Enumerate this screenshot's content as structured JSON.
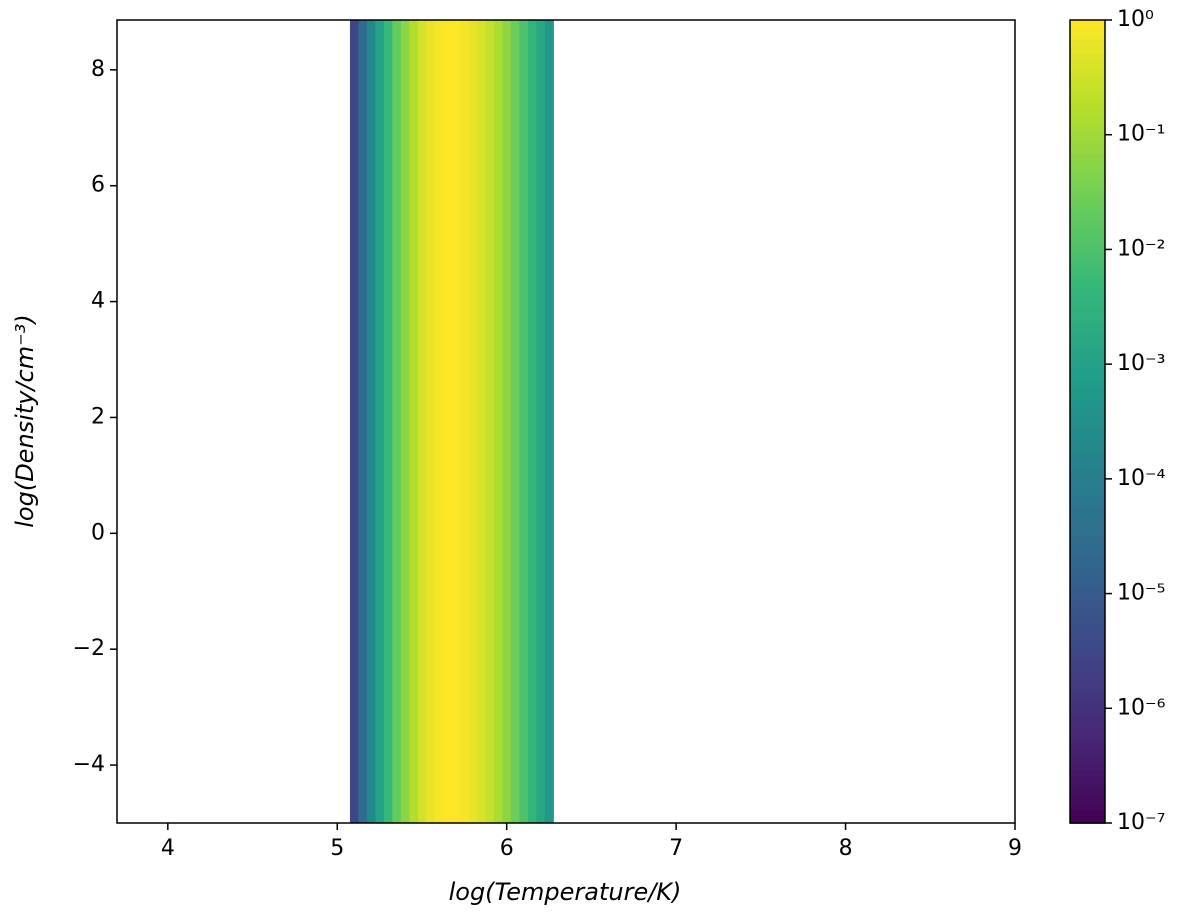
{
  "chart_data": {
    "type": "heatmap",
    "xlabel": "log(Temperature/K)",
    "ylabel": "log(Density/cm⁻³)",
    "x": [
      5.1,
      5.15,
      5.2,
      5.25,
      5.3,
      5.35,
      5.4,
      5.45,
      5.5,
      5.55,
      5.6,
      5.65,
      5.7,
      5.75,
      5.8,
      5.85,
      5.9,
      5.95,
      6.0,
      6.05,
      6.1,
      6.15,
      6.2,
      6.25
    ],
    "values": [
      3e-06,
      3e-05,
      0.0002,
      0.001,
      0.005,
      0.02,
      0.06,
      0.15,
      0.35,
      0.6,
      0.85,
      1,
      0.95,
      0.8,
      0.6,
      0.4,
      0.25,
      0.13,
      0.06,
      0.025,
      0.01,
      0.004,
      0.0015,
      0.0005
    ],
    "xlim": [
      3.7,
      9
    ],
    "xticks": [
      4,
      5,
      6,
      7,
      8,
      9
    ],
    "ylim": [
      -5,
      8.86
    ],
    "yticks": [
      {
        "value": -4,
        "label": "−4"
      },
      {
        "value": -2,
        "label": "−2"
      },
      0,
      2,
      4,
      6,
      8
    ],
    "colormap": "viridis",
    "color_scale": "log",
    "clim": [
      1e-07,
      1
    ],
    "cticks": [
      {
        "value": 1,
        "label": "10⁰"
      },
      {
        "value": 0.1,
        "label": "10⁻¹"
      },
      {
        "value": 0.01,
        "label": "10⁻²"
      },
      {
        "value": 0.001,
        "label": "10⁻³"
      },
      {
        "value": 0.0001,
        "label": "10⁻⁴"
      },
      {
        "value": 1e-05,
        "label": "10⁻⁵"
      },
      {
        "value": 1e-06,
        "label": "10⁻⁶"
      },
      {
        "value": 1e-07,
        "label": "10⁻⁷"
      }
    ]
  }
}
